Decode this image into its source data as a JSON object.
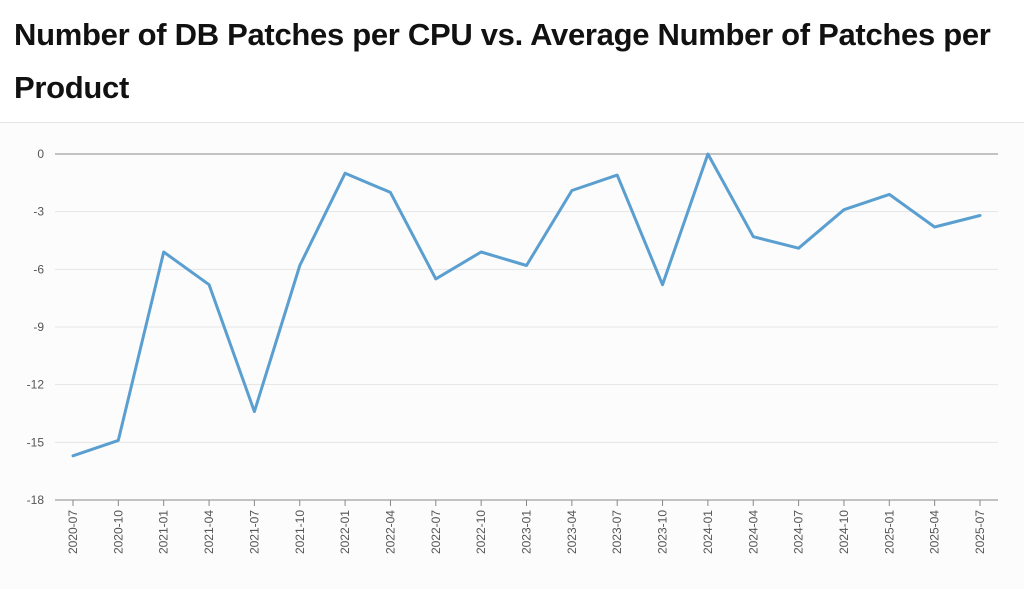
{
  "title": "Number of DB Patches per CPU vs. Average Number of Patches per Product",
  "colors": {
    "line": "#5a9fd0",
    "grid": "#e6e6e6",
    "axis": "#888888"
  },
  "chart_data": {
    "type": "line",
    "title": "Number of DB Patches per CPU vs. Average Number of Patches per Product",
    "xlabel": "",
    "ylabel": "",
    "x": [
      "2020-07",
      "2020-10",
      "2021-01",
      "2021-04",
      "2021-07",
      "2021-10",
      "2022-01",
      "2022-04",
      "2022-07",
      "2022-10",
      "2023-01",
      "2023-04",
      "2023-07",
      "2023-10",
      "2024-01",
      "2024-04",
      "2024-07",
      "2024-10",
      "2025-01",
      "2025-04",
      "2025-07"
    ],
    "series": [
      {
        "values": [
          -15.7,
          -14.9,
          -5.1,
          -6.8,
          -13.4,
          -5.8,
          -1.0,
          -2.0,
          -6.5,
          -5.1,
          -5.8,
          -1.9,
          -1.1,
          -6.8,
          0.0,
          -4.3,
          -4.9,
          -2.9,
          -2.1,
          -3.8,
          -3.2
        ]
      }
    ],
    "ylim": [
      -18,
      0
    ],
    "yticks": [
      "0",
      "-3",
      "-6",
      "-9",
      "-12",
      "-15",
      "-18"
    ],
    "grid": true,
    "legend": "none"
  }
}
